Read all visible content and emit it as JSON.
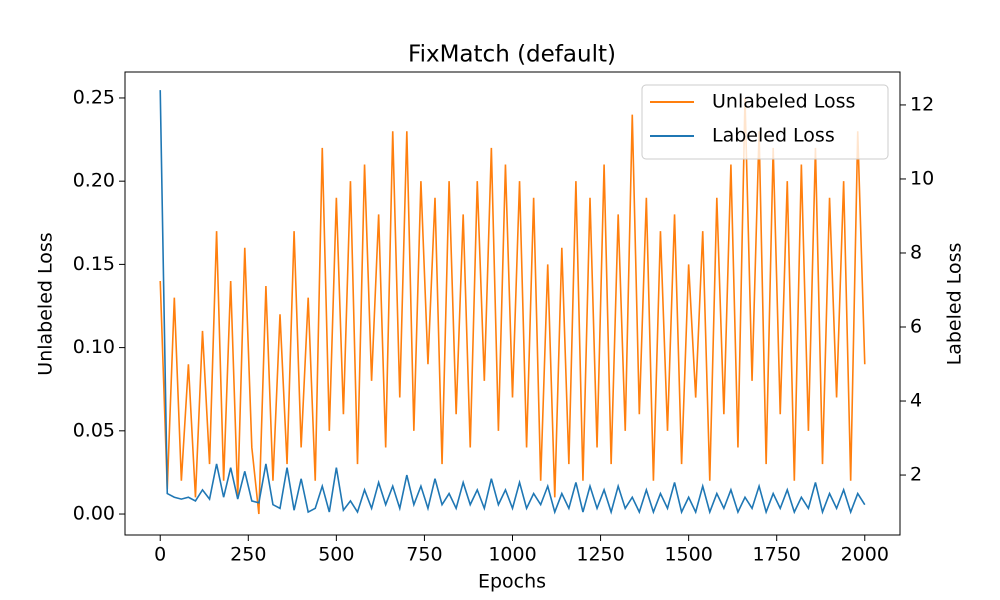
{
  "chart_data": {
    "type": "line",
    "title": "FixMatch (default)",
    "x_label": "Epochs",
    "y_label": "Unlabeled Loss",
    "y2_label": "Labeled Loss",
    "x": [
      0,
      20,
      40,
      60,
      80,
      100,
      120,
      140,
      160,
      180,
      200,
      220,
      240,
      260,
      280,
      300,
      320,
      340,
      360,
      380,
      400,
      420,
      440,
      460,
      480,
      500,
      520,
      540,
      560,
      580,
      600,
      620,
      640,
      660,
      680,
      700,
      720,
      740,
      760,
      780,
      800,
      820,
      840,
      860,
      880,
      900,
      920,
      940,
      960,
      980,
      1000,
      1020,
      1040,
      1060,
      1080,
      1100,
      1120,
      1140,
      1160,
      1180,
      1200,
      1220,
      1240,
      1260,
      1280,
      1300,
      1320,
      1340,
      1360,
      1380,
      1400,
      1420,
      1440,
      1460,
      1480,
      1500,
      1520,
      1540,
      1560,
      1580,
      1600,
      1620,
      1640,
      1660,
      1680,
      1700,
      1720,
      1740,
      1760,
      1780,
      1800,
      1820,
      1840,
      1860,
      1880,
      1900,
      1920,
      1940,
      1960,
      1980,
      2000
    ],
    "series": [
      {
        "name": "Unlabeled Loss",
        "color": "#ff7f0e",
        "axis": "y",
        "values": [
          0.14,
          0.015,
          0.13,
          0.02,
          0.09,
          0.01,
          0.11,
          0.03,
          0.17,
          0.02,
          0.14,
          0.01,
          0.16,
          0.04,
          0.0,
          0.137,
          0.02,
          0.12,
          0.03,
          0.17,
          0.04,
          0.13,
          0.02,
          0.22,
          0.05,
          0.19,
          0.06,
          0.2,
          0.03,
          0.21,
          0.08,
          0.18,
          0.04,
          0.23,
          0.07,
          0.23,
          0.05,
          0.2,
          0.09,
          0.19,
          0.03,
          0.2,
          0.06,
          0.18,
          0.04,
          0.2,
          0.08,
          0.22,
          0.05,
          0.21,
          0.07,
          0.2,
          0.04,
          0.19,
          0.02,
          0.15,
          0.01,
          0.16,
          0.03,
          0.2,
          0.02,
          0.19,
          0.04,
          0.21,
          0.03,
          0.18,
          0.05,
          0.24,
          0.06,
          0.19,
          0.02,
          0.17,
          0.05,
          0.18,
          0.03,
          0.15,
          0.07,
          0.17,
          0.02,
          0.19,
          0.06,
          0.21,
          0.04,
          0.25,
          0.08,
          0.23,
          0.03,
          0.22,
          0.06,
          0.2,
          0.02,
          0.21,
          0.05,
          0.22,
          0.03,
          0.19,
          0.07,
          0.2,
          0.02,
          0.23,
          0.09
        ]
      },
      {
        "name": "Labeled Loss",
        "color": "#1f77b4",
        "axis": "y2",
        "values": [
          12.4,
          1.5,
          1.4,
          1.35,
          1.4,
          1.3,
          1.6,
          1.35,
          2.3,
          1.4,
          2.2,
          1.35,
          2.1,
          1.3,
          1.25,
          2.3,
          1.2,
          1.1,
          2.2,
          1.05,
          1.9,
          1.0,
          1.1,
          1.7,
          1.0,
          2.2,
          1.05,
          1.3,
          1.0,
          1.6,
          1.1,
          1.8,
          1.2,
          1.7,
          1.1,
          2.0,
          1.2,
          1.7,
          1.1,
          1.9,
          1.2,
          1.5,
          1.1,
          1.8,
          1.2,
          1.6,
          1.1,
          1.9,
          1.2,
          1.6,
          1.1,
          1.8,
          1.1,
          1.5,
          1.2,
          1.7,
          1.0,
          1.5,
          1.1,
          1.8,
          1.0,
          1.7,
          1.1,
          1.6,
          1.0,
          1.7,
          1.1,
          1.4,
          1.0,
          1.6,
          1.0,
          1.5,
          1.1,
          1.8,
          1.0,
          1.4,
          1.0,
          1.7,
          1.0,
          1.5,
          1.1,
          1.6,
          1.0,
          1.4,
          1.1,
          1.7,
          1.0,
          1.5,
          1.1,
          1.6,
          1.0,
          1.4,
          1.1,
          1.8,
          1.0,
          1.5,
          1.1,
          1.6,
          1.0,
          1.5,
          1.2
        ]
      }
    ],
    "xlim": [
      -100,
      2100
    ],
    "xticks": [
      0,
      250,
      500,
      750,
      1000,
      1250,
      1500,
      1750,
      2000
    ],
    "ylim": [
      -0.0126,
      0.2656
    ],
    "yticks": [
      {
        "value": 0,
        "label": "0.00"
      },
      {
        "value": 0.05,
        "label": "0.05"
      },
      {
        "value": 0.1,
        "label": "0.10"
      },
      {
        "value": 0.15,
        "label": "0.15"
      },
      {
        "value": 0.2,
        "label": "0.20"
      },
      {
        "value": 0.25,
        "label": "0.25"
      }
    ],
    "y2lim": [
      0.38,
      12.89
    ],
    "y2ticks": [
      2,
      4,
      6,
      8,
      10,
      12
    ],
    "grid": false,
    "legend": "upper right"
  }
}
